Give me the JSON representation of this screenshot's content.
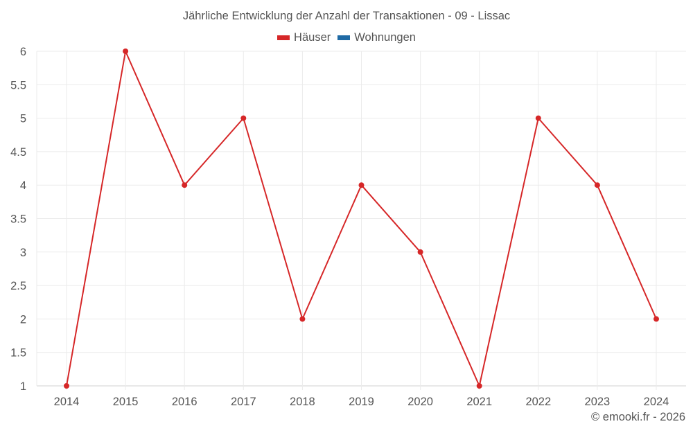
{
  "title": "Jährliche Entwicklung der Anzahl der Transaktionen - 09 - Lissac",
  "legend": [
    {
      "label": "Häuser",
      "color": "#d62728"
    },
    {
      "label": "Wohnungen",
      "color": "#1f6aa5"
    }
  ],
  "credit": "© emooki.fr - 2026",
  "chart_data": {
    "type": "line",
    "title": "Jährliche Entwicklung der Anzahl der Transaktionen - 09 - Lissac",
    "xlabel": "",
    "ylabel": "",
    "categories": [
      "2014",
      "2015",
      "2016",
      "2017",
      "2018",
      "2019",
      "2020",
      "2021",
      "2022",
      "2023",
      "2024"
    ],
    "series": [
      {
        "name": "Häuser",
        "color": "#d62728",
        "values": [
          1,
          6,
          4,
          5,
          2,
          4,
          3,
          1,
          5,
          4,
          2
        ]
      },
      {
        "name": "Wohnungen",
        "color": "#1f6aa5",
        "values": []
      }
    ],
    "ylim": [
      1,
      6
    ],
    "yticks": [
      "1",
      "1.5",
      "2",
      "2.5",
      "3",
      "3.5",
      "4",
      "4.5",
      "5",
      "5.5",
      "6"
    ],
    "grid": true,
    "legend_position": "top"
  }
}
